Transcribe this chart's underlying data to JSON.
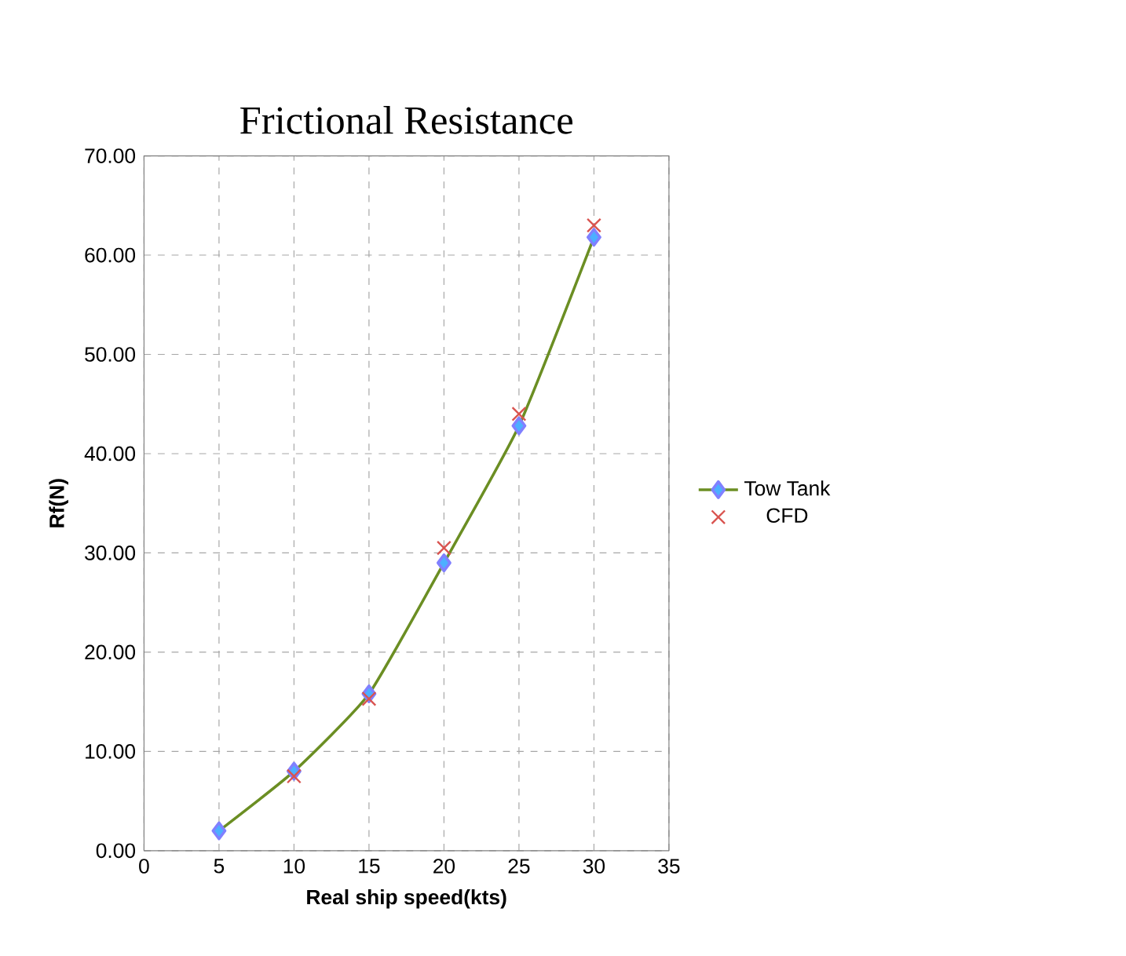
{
  "chart_data": {
    "type": "line",
    "title": "Frictional Resistance",
    "xlabel": "Real ship speed(kts)",
    "ylabel": "Rf(N)",
    "x": [
      5,
      10,
      15,
      20,
      25,
      30
    ],
    "series": [
      {
        "name": "Tow Tank",
        "color": "#6b8e23",
        "marker": "diamond",
        "values": [
          2.0,
          8.0,
          15.8,
          29.0,
          42.8,
          61.8
        ]
      },
      {
        "name": "CFD",
        "type": "scatter",
        "color": "#d9534f",
        "marker": "cross",
        "values": [
          null,
          7.5,
          15.3,
          30.5,
          44.0,
          63.0
        ]
      }
    ],
    "xlim": [
      0,
      35
    ],
    "xticks": [
      0,
      5,
      10,
      15,
      20,
      25,
      30,
      35
    ],
    "ylim": [
      0,
      70
    ],
    "yticks": [
      {
        "value": 0,
        "label": "0.00"
      },
      {
        "value": 10,
        "label": "10.00"
      },
      {
        "value": 20,
        "label": "20.00"
      },
      {
        "value": 30,
        "label": "30.00"
      },
      {
        "value": 40,
        "label": "40.00"
      },
      {
        "value": 50,
        "label": "50.00"
      },
      {
        "value": 60,
        "label": "60.00"
      },
      {
        "value": 70,
        "label": "70.00"
      }
    ],
    "grid": true,
    "legend": "right"
  }
}
